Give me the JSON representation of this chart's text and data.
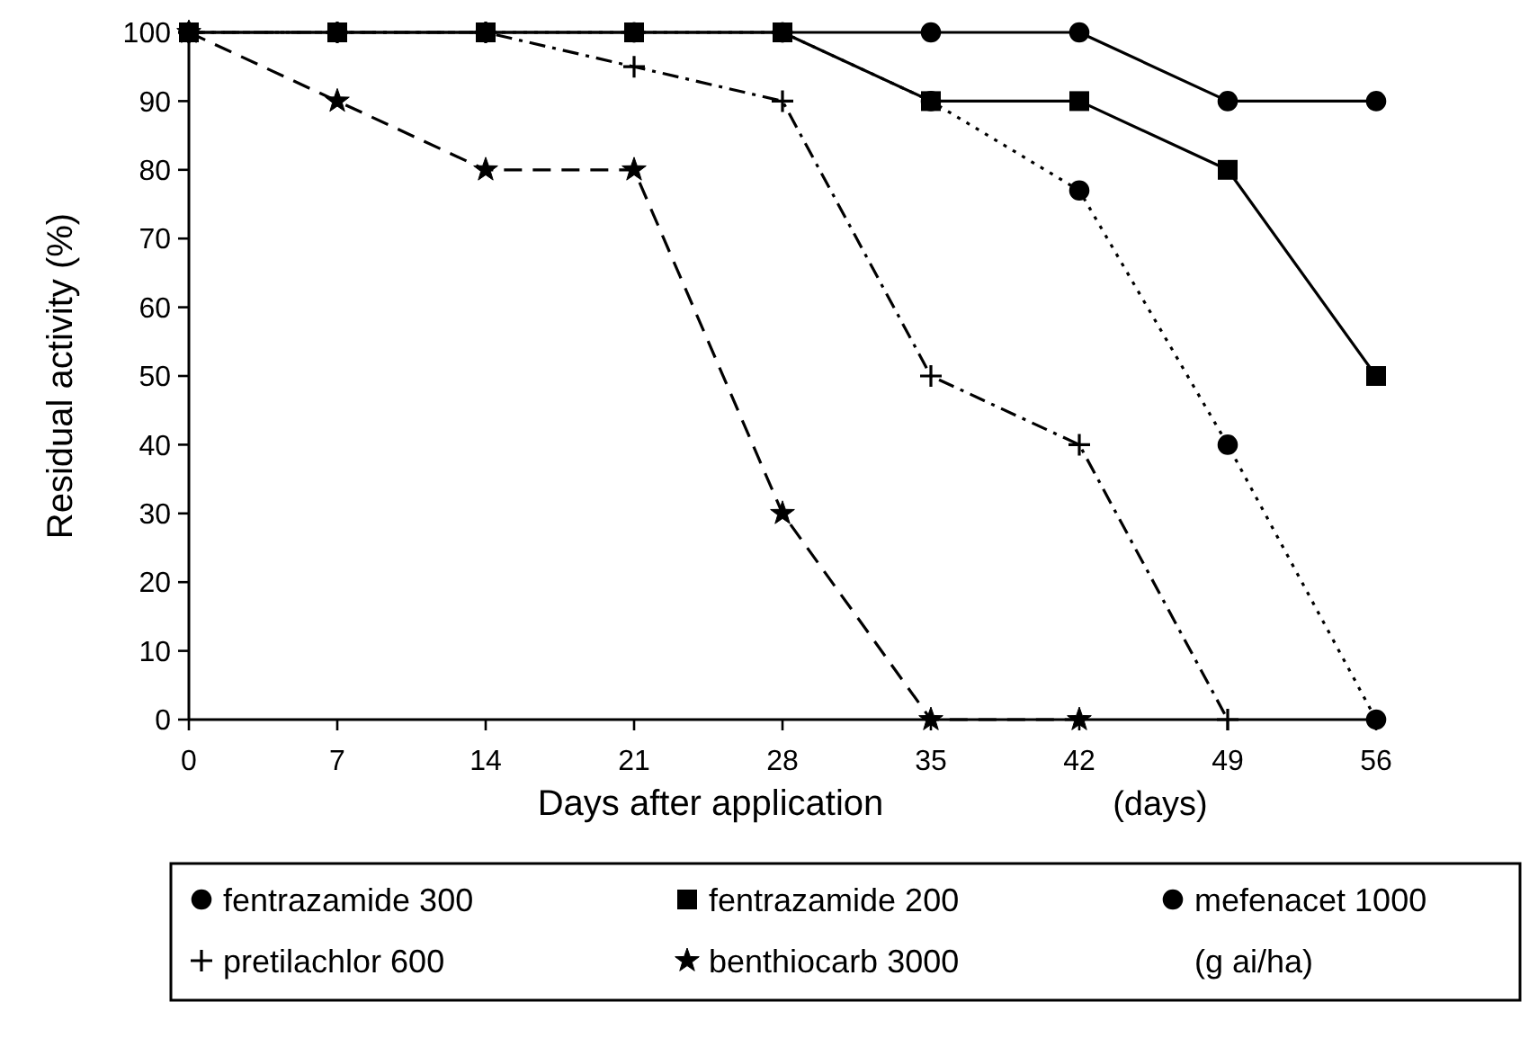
{
  "chart_data": {
    "type": "line",
    "xlabel": "Days after application",
    "ylabel": "Residual activity (%)",
    "annotations": [
      "(days)"
    ],
    "legend_title": "(g ai/ha)",
    "legend": "bottom",
    "grid": false,
    "x": [
      0,
      7,
      14,
      21,
      28,
      35,
      42,
      49,
      56
    ],
    "xlim": [
      0,
      56
    ],
    "xticks": [
      0,
      7,
      14,
      21,
      28,
      35,
      42,
      49,
      56
    ],
    "ylim": [
      0,
      100
    ],
    "yticks": [
      0,
      10,
      20,
      30,
      40,
      50,
      60,
      70,
      80,
      90,
      100
    ],
    "series": [
      {
        "name": "fentrazamide 300",
        "color": "#000000",
        "marker": "circle",
        "line_style": "solid",
        "values": [
          100,
          100,
          100,
          100,
          100,
          100,
          100,
          90,
          90
        ]
      },
      {
        "name": "fentrazamide 200",
        "color": "#000000",
        "marker": "square",
        "line_style": "solid",
        "values": [
          100,
          100,
          100,
          100,
          100,
          90,
          90,
          80,
          50
        ]
      },
      {
        "name": "mefenacet 1000",
        "color": "#000000",
        "marker": "circle",
        "line_style": "dotted",
        "values": [
          100,
          100,
          100,
          100,
          100,
          90,
          77,
          40,
          0
        ]
      },
      {
        "name": "pretilachlor 600",
        "color": "#000000",
        "marker": "cross",
        "line_style": "dashdot",
        "values": [
          100,
          100,
          100,
          95,
          90,
          50,
          40,
          0,
          null
        ]
      },
      {
        "name": "benthiocarb 3000",
        "color": "#000000",
        "marker": "star",
        "line_style": "dashed",
        "values": [
          100,
          90,
          80,
          80,
          30,
          0,
          0,
          null,
          null
        ]
      }
    ]
  }
}
